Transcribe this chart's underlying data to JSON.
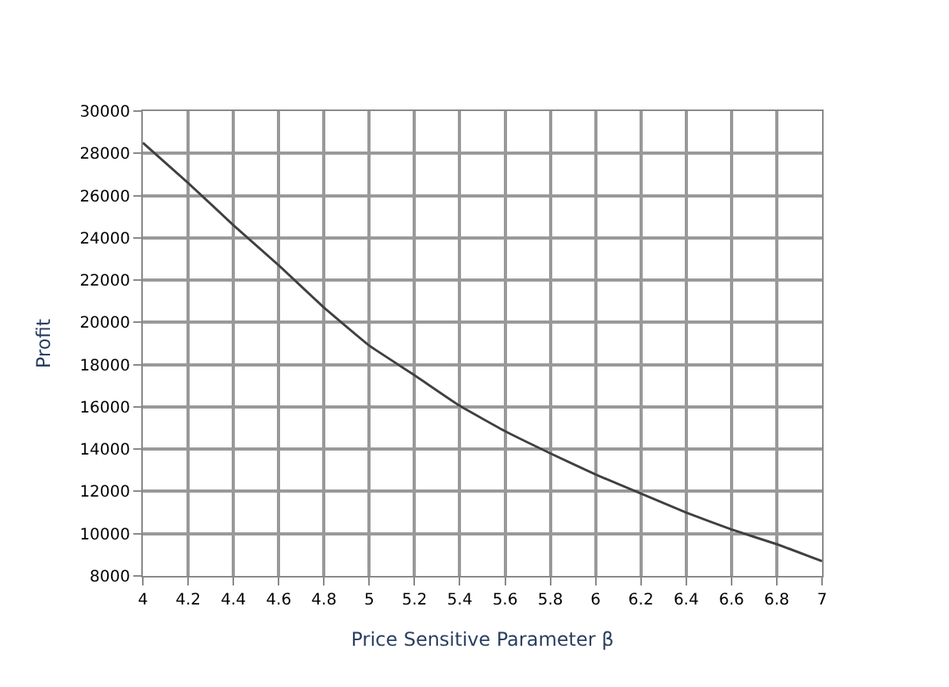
{
  "chart_data": {
    "type": "line",
    "xlabel": "Price Sensitive Parameter β",
    "ylabel": "Profit",
    "x": [
      4,
      4.2,
      4.4,
      4.6,
      4.8,
      5,
      5.2,
      5.4,
      5.6,
      5.8,
      6,
      6.2,
      6.4,
      6.6,
      6.8,
      7
    ],
    "series": [
      {
        "color": "#404040",
        "values": [
          28500,
          26600,
          24600,
          22700,
          20700,
          18900,
          17500,
          16050,
          14850,
          13800,
          12800,
          11900,
          11000,
          10200,
          9500,
          8700
        ]
      }
    ],
    "xlim": [
      4,
      7
    ],
    "xticks": [
      4,
      4.2,
      4.4,
      4.6,
      4.8,
      5,
      5.2,
      5.4,
      5.6,
      5.8,
      6,
      6.2,
      6.4,
      6.6,
      6.8,
      7
    ],
    "ylim": [
      8000,
      30000
    ],
    "yticks": [
      8000,
      10000,
      12000,
      14000,
      16000,
      18000,
      20000,
      22000,
      24000,
      26000,
      28000,
      30000
    ],
    "grid": true,
    "marker": "none",
    "line_style": "solid"
  }
}
